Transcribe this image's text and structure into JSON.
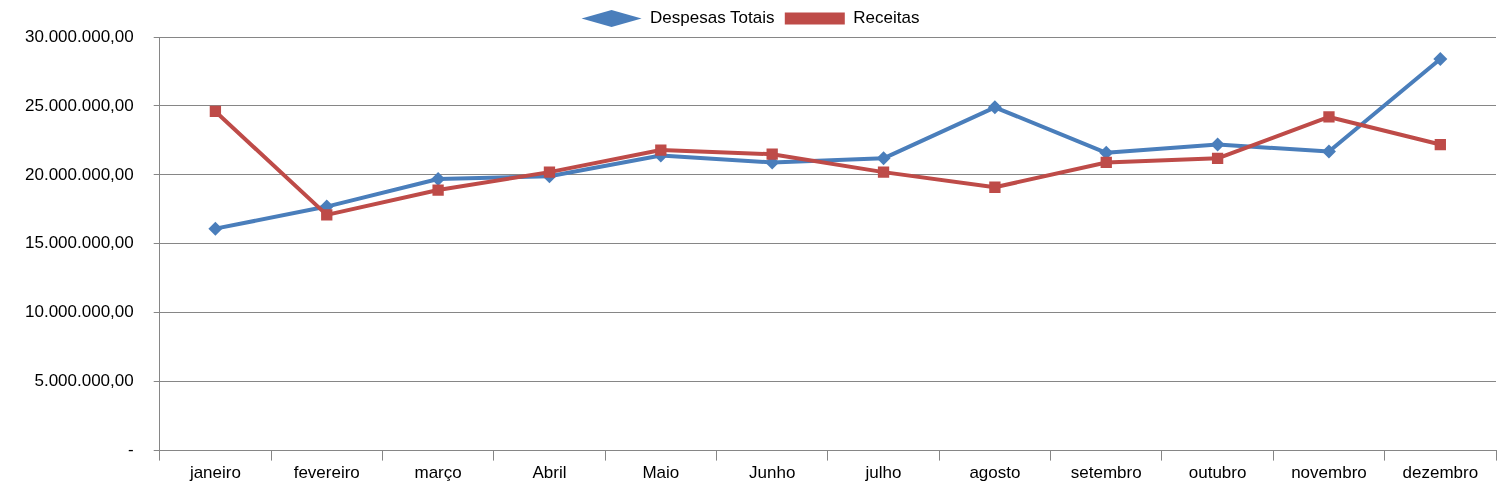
{
  "chart_data": {
    "type": "line",
    "categories": [
      "janeiro",
      "fevereiro",
      "março",
      "Abril",
      "Maio",
      "Junho",
      "julho",
      "agosto",
      "setembro",
      "outubro",
      "novembro",
      "dezembro"
    ],
    "series": [
      {
        "name": "Despesas Totais",
        "color": "#4a7ebb",
        "marker": "diamond",
        "values": [
          16100000,
          17700000,
          19700000,
          19900000,
          21400000,
          20900000,
          21200000,
          24900000,
          21600000,
          22200000,
          21700000,
          28400000
        ]
      },
      {
        "name": "Receitas",
        "color": "#be4b48",
        "marker": "square",
        "values": [
          24600000,
          17100000,
          18900000,
          20200000,
          21800000,
          21500000,
          20200000,
          19100000,
          20900000,
          21200000,
          24200000,
          22200000
        ]
      }
    ],
    "ylim": [
      0,
      30000000
    ],
    "yticks": [
      {
        "value": 0,
        "label": "-"
      },
      {
        "value": 5000000,
        "label": "5.000.000,00"
      },
      {
        "value": 10000000,
        "label": "10.000.000,00"
      },
      {
        "value": 15000000,
        "label": "15.000.000,00"
      },
      {
        "value": 20000000,
        "label": "20.000.000,00"
      },
      {
        "value": 25000000,
        "label": "25.000.000,00"
      },
      {
        "value": 30000000,
        "label": "30.000.000,00"
      }
    ],
    "grid": "y",
    "legend": "top"
  }
}
